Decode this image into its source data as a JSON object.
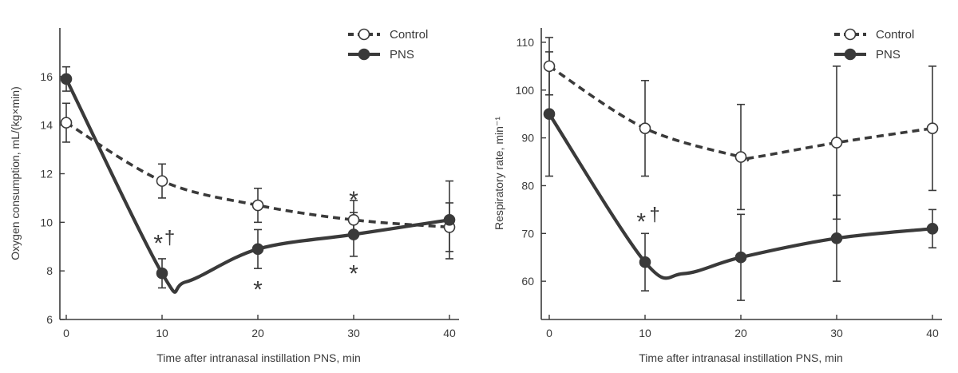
{
  "chart_data": [
    {
      "type": "line",
      "xlabel": "Time after intranasal instillation PNS, min",
      "ylabel": "Oxygen consumption, mL/(kg×min)",
      "xlim": [
        0,
        40
      ],
      "ylim": [
        6,
        18
      ],
      "xticks": [
        0,
        10,
        20,
        30,
        40
      ],
      "yticks": [
        6,
        8,
        10,
        12,
        14,
        16
      ],
      "legend_position": "top-right",
      "series": [
        {
          "name": "Control",
          "style": "dashed-open-circle",
          "x": [
            0,
            10,
            20,
            30,
            40
          ],
          "y": [
            14.1,
            11.7,
            10.7,
            10.1,
            9.8
          ],
          "err_low": [
            13.3,
            11.0,
            10.0,
            9.4,
            8.8
          ],
          "err_high": [
            14.9,
            12.4,
            11.4,
            10.9,
            10.8
          ]
        },
        {
          "name": "PNS",
          "style": "solid-filled-circle",
          "x": [
            0,
            10,
            20,
            30,
            40
          ],
          "y": [
            15.9,
            7.9,
            8.9,
            9.5,
            10.1
          ],
          "err_low": [
            15.4,
            7.3,
            8.1,
            8.6,
            8.5
          ],
          "err_high": [
            16.4,
            8.5,
            9.7,
            10.4,
            11.7
          ],
          "smooth_dip": [
            12.5,
            7.55
          ]
        }
      ],
      "annotations": [
        {
          "text": "*",
          "x": 9.6,
          "y": 9.2
        },
        {
          "text": "†",
          "x": 10.8,
          "y": 9.1
        },
        {
          "text": "*",
          "x": 20,
          "y": 7.3
        },
        {
          "text": "*",
          "x": 30,
          "y": 11.0
        },
        {
          "text": "*",
          "x": 30,
          "y": 7.95
        }
      ]
    },
    {
      "type": "line",
      "xlabel": "Time after intranasal instillation PNS, min",
      "ylabel": "Respiratory rate, min⁻¹",
      "xlim": [
        0,
        40
      ],
      "ylim": [
        52,
        113
      ],
      "xticks": [
        0,
        10,
        20,
        30,
        40
      ],
      "yticks": [
        60,
        70,
        80,
        90,
        100,
        110
      ],
      "legend_position": "top-right",
      "series": [
        {
          "name": "Control",
          "style": "dashed-open-circle",
          "x": [
            0,
            10,
            20,
            30,
            40
          ],
          "y": [
            105,
            92,
            86,
            89,
            92
          ],
          "err_low": [
            99,
            82,
            75,
            73,
            79
          ],
          "err_high": [
            111,
            102,
            97,
            105,
            105
          ],
          "smooth_dip": [
            21,
            85.8
          ]
        },
        {
          "name": "PNS",
          "style": "solid-filled-circle",
          "x": [
            0,
            10,
            20,
            30,
            40
          ],
          "y": [
            95,
            64,
            65,
            69,
            71
          ],
          "err_low": [
            82,
            58,
            56,
            60,
            67
          ],
          "err_high": [
            108,
            70,
            74,
            78,
            75
          ],
          "smooth_dip": [
            14,
            61.6
          ]
        }
      ],
      "annotations": [
        {
          "text": "*",
          "x": 9.6,
          "y": 72.8
        },
        {
          "text": "†",
          "x": 11.0,
          "y": 72.6
        }
      ]
    }
  ]
}
